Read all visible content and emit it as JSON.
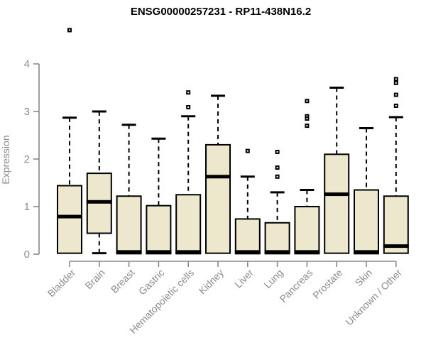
{
  "chart_data": {
    "type": "boxplot",
    "title": "ENSG00000257231 - RP11-438N16.2",
    "ylabel": "Expression",
    "xlabel": "",
    "ylim": [
      0,
      4
    ],
    "yticks": [
      0,
      1,
      2,
      3,
      4
    ],
    "grid": false,
    "legend": "none",
    "colors": {
      "box_fill": "#ece7cd",
      "box_border": "#000000",
      "median": "#000000",
      "whisker": "#000000",
      "outlier": "#000000",
      "axis": "#898989",
      "tick_label": "#8c8c8c",
      "title": "#000000"
    },
    "categories": [
      "Bladder",
      "Brain",
      "Breast",
      "Gastric",
      "Hematopoietic cells",
      "Kidney",
      "Liver",
      "Lung",
      "Pancreas",
      "Prostate",
      "Skin",
      "Unknown / Other"
    ],
    "series": [
      {
        "name": "Bladder",
        "min": 0,
        "q1": 0.02,
        "median": 0.79,
        "q3": 1.44,
        "max": 2.87,
        "outliers": [
          4.71
        ]
      },
      {
        "name": "Brain",
        "min": 0.02,
        "q1": 0.44,
        "median": 1.1,
        "q3": 1.7,
        "max": 3.0,
        "outliers": []
      },
      {
        "name": "Breast",
        "min": 0,
        "q1": 0.01,
        "median": 0.03,
        "q3": 1.22,
        "max": 2.72,
        "outliers": []
      },
      {
        "name": "Gastric",
        "min": 0,
        "q1": 0.01,
        "median": 0.03,
        "q3": 1.02,
        "max": 2.43,
        "outliers": []
      },
      {
        "name": "Hematopoietic cells",
        "min": 0,
        "q1": 0.01,
        "median": 0.03,
        "q3": 1.25,
        "max": 2.9,
        "outliers": [
          3.4,
          3.09
        ]
      },
      {
        "name": "Kidney",
        "min": 0,
        "q1": 0.02,
        "median": 1.63,
        "q3": 2.3,
        "max": 3.33,
        "outliers": []
      },
      {
        "name": "Liver",
        "min": 0,
        "q1": 0.01,
        "median": 0.03,
        "q3": 0.74,
        "max": 1.63,
        "outliers": [
          2.17
        ]
      },
      {
        "name": "Lung",
        "min": 0,
        "q1": 0.01,
        "median": 0.03,
        "q3": 0.66,
        "max": 1.3,
        "outliers": [
          2.15,
          1.82,
          1.63
        ]
      },
      {
        "name": "Pancreas",
        "min": 0,
        "q1": 0.01,
        "median": 0.03,
        "q3": 1.0,
        "max": 1.35,
        "outliers": [
          3.22,
          2.9,
          2.85,
          2.7
        ]
      },
      {
        "name": "Prostate",
        "min": 0,
        "q1": 0.02,
        "median": 1.26,
        "q3": 2.1,
        "max": 3.5,
        "outliers": []
      },
      {
        "name": "Skin",
        "min": 0,
        "q1": 0.01,
        "median": 0.03,
        "q3": 1.35,
        "max": 2.65,
        "outliers": []
      },
      {
        "name": "Unknown / Other",
        "min": 0,
        "q1": 0.02,
        "median": 0.17,
        "q3": 1.22,
        "max": 2.88,
        "outliers": [
          3.68,
          3.6,
          3.35,
          3.12
        ]
      }
    ]
  }
}
